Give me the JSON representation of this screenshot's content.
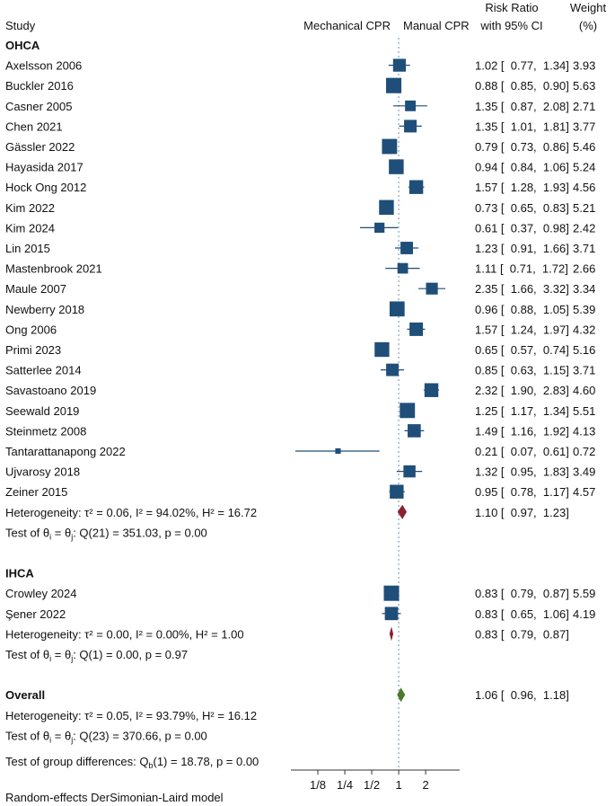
{
  "chart_data": {
    "type": "forest",
    "headers": {
      "study": "Study",
      "left_favor": "Mechanical CPR",
      "right_favor": "Manual CPR",
      "effect_line1": "Risk Ratio",
      "effect_line2": "with 95% CI",
      "weight_line1": "Weight",
      "weight_line2": "(%)"
    },
    "x_axis": {
      "scale": "log2",
      "range": [
        0.0625,
        4.8
      ],
      "null_value": 1,
      "ticks": [
        {
          "value": 0.125,
          "label": "1/8"
        },
        {
          "value": 0.25,
          "label": "1/4"
        },
        {
          "value": 0.5,
          "label": "1/2"
        },
        {
          "value": 1,
          "label": "1"
        },
        {
          "value": 2,
          "label": "2"
        }
      ]
    },
    "rows": [
      {
        "kind": "group",
        "label": "OHCA"
      },
      {
        "kind": "study",
        "label": "Axelsson 2006",
        "rr": 1.02,
        "lo": 0.77,
        "hi": 1.34,
        "weight": 3.93
      },
      {
        "kind": "study",
        "label": "Buckler 2016",
        "rr": 0.88,
        "lo": 0.85,
        "hi": 0.9,
        "weight": 5.63
      },
      {
        "kind": "study",
        "label": "Casner 2005",
        "rr": 1.35,
        "lo": 0.87,
        "hi": 2.08,
        "weight": 2.71
      },
      {
        "kind": "study",
        "label": "Chen 2021",
        "rr": 1.35,
        "lo": 1.01,
        "hi": 1.81,
        "weight": 3.77
      },
      {
        "kind": "study",
        "label": "Gässler  2022",
        "rr": 0.79,
        "lo": 0.73,
        "hi": 0.86,
        "weight": 5.46
      },
      {
        "kind": "study",
        "label": "Hayasida 2017",
        "rr": 0.94,
        "lo": 0.84,
        "hi": 1.06,
        "weight": 5.24
      },
      {
        "kind": "study",
        "label": "Hock Ong 2012",
        "rr": 1.57,
        "lo": 1.28,
        "hi": 1.93,
        "weight": 4.56
      },
      {
        "kind": "study",
        "label": "Kim 2022",
        "rr": 0.73,
        "lo": 0.65,
        "hi": 0.83,
        "weight": 5.21
      },
      {
        "kind": "study",
        "label": "Kim 2024",
        "rr": 0.61,
        "lo": 0.37,
        "hi": 0.98,
        "weight": 2.42
      },
      {
        "kind": "study",
        "label": "Lin 2015",
        "rr": 1.23,
        "lo": 0.91,
        "hi": 1.66,
        "weight": 3.71
      },
      {
        "kind": "study",
        "label": "Mastenbrook 2021",
        "rr": 1.11,
        "lo": 0.71,
        "hi": 1.72,
        "weight": 2.66
      },
      {
        "kind": "study",
        "label": "Maule 2007",
        "rr": 2.35,
        "lo": 1.66,
        "hi": 3.32,
        "weight": 3.34
      },
      {
        "kind": "study",
        "label": "Newberry 2018",
        "rr": 0.96,
        "lo": 0.88,
        "hi": 1.05,
        "weight": 5.39
      },
      {
        "kind": "study",
        "label": "Ong 2006",
        "rr": 1.57,
        "lo": 1.24,
        "hi": 1.97,
        "weight": 4.32
      },
      {
        "kind": "study",
        "label": "Primi 2023",
        "rr": 0.65,
        "lo": 0.57,
        "hi": 0.74,
        "weight": 5.16
      },
      {
        "kind": "study",
        "label": "Satterlee 2014",
        "rr": 0.85,
        "lo": 0.63,
        "hi": 1.15,
        "weight": 3.71
      },
      {
        "kind": "study",
        "label": "Savastoano 2019",
        "rr": 2.32,
        "lo": 1.9,
        "hi": 2.83,
        "weight": 4.6
      },
      {
        "kind": "study",
        "label": "Seewald 2019",
        "rr": 1.25,
        "lo": 1.17,
        "hi": 1.34,
        "weight": 5.51
      },
      {
        "kind": "study",
        "label": "Steinmetz 2008",
        "rr": 1.49,
        "lo": 1.16,
        "hi": 1.92,
        "weight": 4.13
      },
      {
        "kind": "study",
        "label": "Tantarattanapong 2022",
        "rr": 0.21,
        "lo": 0.07,
        "hi": 0.61,
        "weight": 0.72
      },
      {
        "kind": "study",
        "label": "Ujvarosy 2018",
        "rr": 1.32,
        "lo": 0.95,
        "hi": 1.83,
        "weight": 3.49
      },
      {
        "kind": "study",
        "label": "Zeiner 2015",
        "rr": 0.95,
        "lo": 0.78,
        "hi": 1.17,
        "weight": 4.57
      },
      {
        "kind": "subtotal",
        "label": "Heterogeneity: τ² = 0.06, I² = 94.02%, H² = 16.72",
        "rr": 1.1,
        "lo": 0.97,
        "hi": 1.23,
        "color": "#8b2130"
      },
      {
        "kind": "text",
        "label": "Test of θᵢ = θⱼ: Q(21) = 351.03, p = 0.00"
      },
      {
        "kind": "blank"
      },
      {
        "kind": "group",
        "label": "IHCA"
      },
      {
        "kind": "study",
        "label": "Crowley 2024",
        "rr": 0.83,
        "lo": 0.79,
        "hi": 0.87,
        "weight": 5.59
      },
      {
        "kind": "study",
        "label": "Şener 2022",
        "rr": 0.83,
        "lo": 0.65,
        "hi": 1.06,
        "weight": 4.19
      },
      {
        "kind": "subtotal",
        "label": "Heterogeneity: τ² = 0.00, I² = 0.00%, H² = 1.00",
        "rr": 0.83,
        "lo": 0.79,
        "hi": 0.87,
        "color": "#8b2130"
      },
      {
        "kind": "text",
        "label": "Test of θᵢ = θⱼ: Q(1) = 0.00, p = 0.97"
      },
      {
        "kind": "blank"
      },
      {
        "kind": "overall",
        "label": "Overall",
        "rr": 1.06,
        "lo": 0.96,
        "hi": 1.18,
        "color": "#4a7a2a"
      },
      {
        "kind": "text",
        "label": "Heterogeneity: τ² = 0.05, I² = 93.79%, H² = 16.12"
      },
      {
        "kind": "text",
        "label": "Test of θᵢ = θⱼ: Q(23) = 370.66, p = 0.00"
      },
      {
        "kind": "text",
        "label": "Test of group differences: Q_b(1) = 18.78, p = 0.00"
      }
    ],
    "footnote": "Random-effects DerSimonian-Laird model",
    "colors": {
      "marker": "#1f4e79",
      "ci_line": "#1f4e79",
      "null_line": "#8aa2bf"
    }
  }
}
